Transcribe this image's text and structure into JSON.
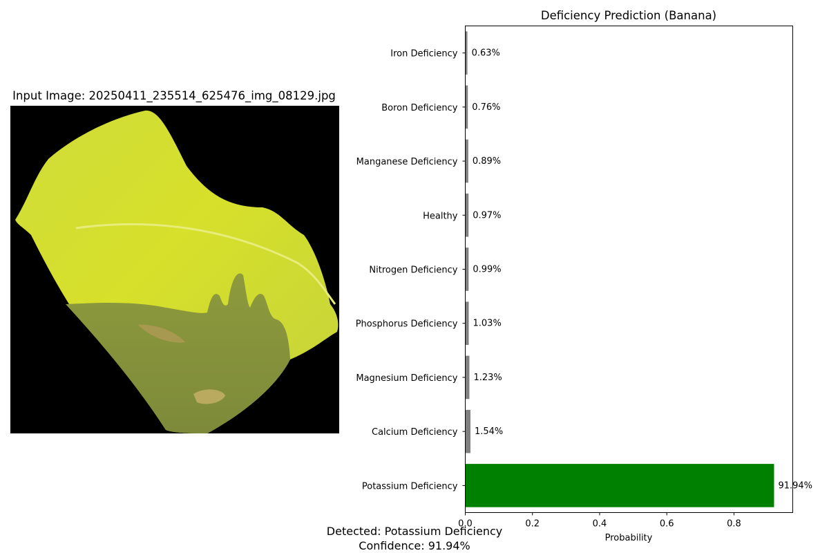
{
  "figure": {
    "image_title": "Input Image: 20250411_235514_625476_img_08129.jpg",
    "caption_line1": "Detected: Potassium Deficiency",
    "caption_line2": "Confidence: 91.94%"
  },
  "colors": {
    "bar_default": "#808080",
    "bar_highlight": "#008000",
    "photo_background": "#000000"
  },
  "chart_data": {
    "type": "bar",
    "orientation": "horizontal",
    "title": "Deficiency Prediction (Banana)",
    "xlabel": "Probability",
    "ylabel": "",
    "xlim": [
      0,
      0.975
    ],
    "xticks": [
      0,
      0.2,
      0.4,
      0.6,
      0.8
    ],
    "xtick_labels": [
      "0.0",
      "0.2",
      "0.4",
      "0.6",
      "0.8"
    ],
    "grid": false,
    "categories": [
      "Potassium Deficiency",
      "Calcium Deficiency",
      "Magnesium Deficiency",
      "Phosphorus Deficiency",
      "Nitrogen Deficiency",
      "Healthy",
      "Manganese Deficiency",
      "Boron Deficiency",
      "Iron Deficiency"
    ],
    "values": [
      0.9194,
      0.0154,
      0.0123,
      0.0103,
      0.0099,
      0.0097,
      0.0089,
      0.0076,
      0.0063
    ],
    "value_labels": [
      "91.94%",
      "1.54%",
      "1.23%",
      "1.03%",
      "0.99%",
      "0.97%",
      "0.89%",
      "0.76%",
      "0.63%"
    ],
    "highlight_index": 0
  }
}
